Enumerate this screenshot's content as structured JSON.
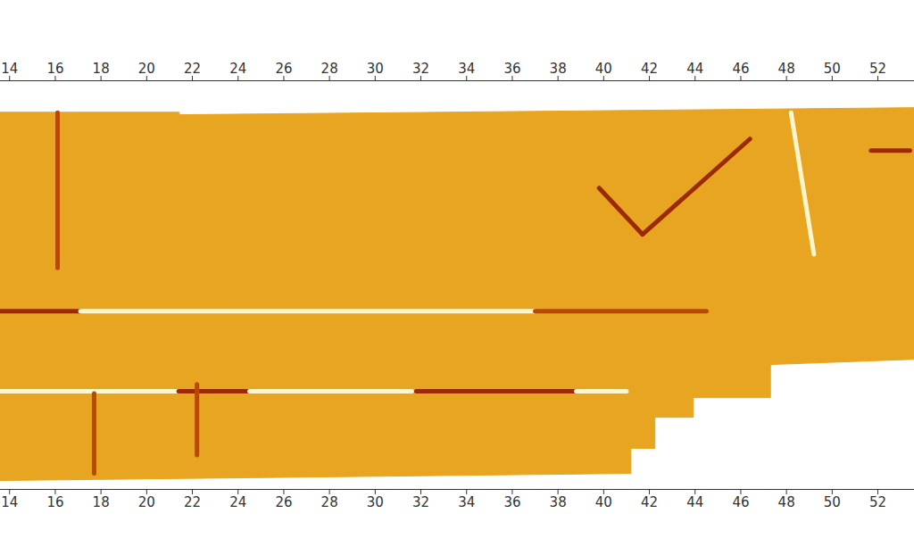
{
  "chart_data": {
    "type": "survey_map",
    "xlim": [
      13.6,
      53.6
    ],
    "xticks": [
      14,
      16,
      18,
      20,
      22,
      24,
      26,
      28,
      30,
      32,
      34,
      36,
      38,
      40,
      42,
      44,
      46,
      48,
      50,
      52
    ],
    "ylim": [
      0,
      17.9
    ],
    "tick_labels": "x",
    "survey_area": {
      "color": "#e8a522",
      "x": [
        13.6,
        21.42,
        21.42,
        53.6,
        53.6,
        47.3,
        47.3,
        43.92,
        43.92,
        42.24,
        42.24,
        41.19,
        41.19,
        13.6,
        13.6
      ],
      "y": [
        16.52,
        16.52,
        16.41,
        16.72,
        5.7,
        5.47,
        4.02,
        4.02,
        3.16,
        3.16,
        1.8,
        1.8,
        0.7,
        0.39,
        16.52
      ]
    },
    "features": [
      {
        "color": "#9c2a00",
        "x": [
          13.6,
          17.1
        ],
        "y": [
          7.81,
          7.81
        ]
      },
      {
        "color": "#fff6cc",
        "x": [
          17.1,
          37.0
        ],
        "y": [
          7.81,
          7.81
        ]
      },
      {
        "color": "#b84a00",
        "x": [
          37.0,
          44.5
        ],
        "y": [
          7.81,
          7.81
        ]
      },
      {
        "color": "#fff6cc",
        "x": [
          13.6,
          21.4
        ],
        "y": [
          4.3,
          4.3
        ]
      },
      {
        "color": "#9c2a00",
        "x": [
          21.4,
          24.5
        ],
        "y": [
          4.3,
          4.3
        ]
      },
      {
        "color": "#fff6cc",
        "x": [
          24.5,
          31.6
        ],
        "y": [
          4.3,
          4.3
        ]
      },
      {
        "color": "#9c2a00",
        "x": [
          31.8,
          38.8
        ],
        "y": [
          4.3,
          4.3
        ]
      },
      {
        "color": "#fff6cc",
        "x": [
          38.8,
          41.0
        ],
        "y": [
          4.3,
          4.3
        ]
      },
      {
        "color": "#9c2a00",
        "x": [
          39.8,
          41.7
        ],
        "y": [
          13.2,
          11.17
        ]
      },
      {
        "color": "#9c2a00",
        "x": [
          41.7,
          46.4
        ],
        "y": [
          11.17,
          15.35
        ]
      },
      {
        "color": "#fff6cc",
        "x": [
          48.2,
          49.2
        ],
        "y": [
          16.5,
          10.3
        ]
      },
      {
        "color": "#b84a00",
        "x": [
          16.1,
          16.1
        ],
        "y": [
          16.5,
          9.7
        ]
      },
      {
        "color": "#b84a00",
        "x": [
          17.7,
          17.7
        ],
        "y": [
          4.2,
          0.7
        ]
      },
      {
        "color": "#b84a00",
        "x": [
          22.2,
          22.2
        ],
        "y": [
          4.6,
          1.5
        ]
      },
      {
        "color": "#9c2a00",
        "x": [
          51.7,
          53.4
        ],
        "y": [
          14.84,
          14.84
        ]
      }
    ]
  }
}
